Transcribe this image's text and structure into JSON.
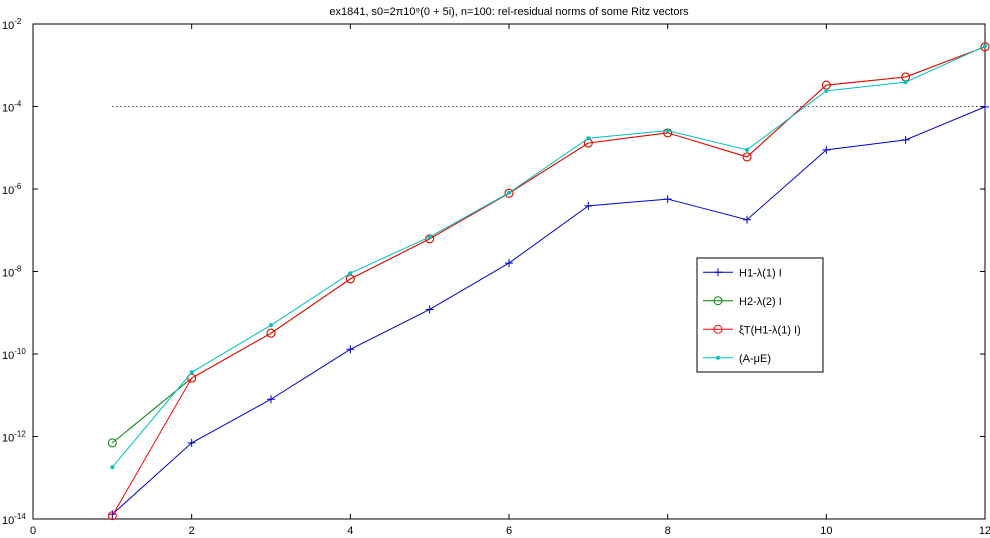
{
  "chart_data": {
    "type": "line",
    "title": "ex1841, s0=2π10⁹(0 + 5i), n=100:  rel-residual norms of some Ritz vectors",
    "x": [
      1,
      2,
      3,
      4,
      5,
      6,
      7,
      8,
      9,
      10,
      11,
      12
    ],
    "series": [
      {
        "name": "H1-λ(1) I",
        "color": "#0000cc",
        "marker": "+",
        "values": [
          1.3e-14,
          7e-13,
          8e-12,
          1.3e-10,
          1.2e-09,
          1.6e-08,
          3.9e-07,
          5.7e-07,
          1.8e-07,
          8.9e-06,
          1.55e-05,
          9.8e-05
        ]
      },
      {
        "name": "H2-λ(2) I",
        "color": "#008000",
        "marker": "o",
        "values": [
          7e-13,
          2.6e-11,
          3.2e-10,
          6.6e-09,
          6.2e-08,
          7.9e-07,
          1.3e-05,
          2.3e-05,
          6e-06,
          0.00033,
          0.00052,
          0.0028
        ]
      },
      {
        "name": "ξT(H1-λ(1) I)",
        "color": "#ff0000",
        "marker": "o",
        "values": [
          1.2e-14,
          2.6e-11,
          3.2e-10,
          6.6e-09,
          6.2e-08,
          7.9e-07,
          1.3e-05,
          2.3e-05,
          6e-06,
          0.00033,
          0.00052,
          0.0028
        ]
      },
      {
        "name": "(A-μE)",
        "color": "#00bfbf",
        "marker": ".",
        "values": [
          1.8e-13,
          3.6e-11,
          5e-10,
          9.1e-09,
          6.9e-08,
          8.1e-07,
          1.7e-05,
          2.6e-05,
          8.9e-06,
          0.00024,
          0.00039,
          0.0029
        ]
      }
    ],
    "reference_line": {
      "y": 0.0001,
      "x": [
        1,
        12
      ]
    },
    "xlim": [
      0,
      12
    ],
    "xticks": [
      0,
      2,
      4,
      6,
      8,
      10,
      12
    ],
    "ylim": [
      1e-14,
      0.01
    ],
    "yscale": "log",
    "yticks": [
      {
        "value": 1e-14,
        "label": "10^-14"
      },
      {
        "value": 1e-12,
        "label": "10^-12"
      },
      {
        "value": 1e-10,
        "label": "10^-10"
      },
      {
        "value": 1e-08,
        "label": "10^-8"
      },
      {
        "value": 1e-06,
        "label": "10^-6"
      },
      {
        "value": 0.0001,
        "label": "10^-4"
      },
      {
        "value": 0.01,
        "label": "10^-2"
      }
    ],
    "legend": "center-right"
  }
}
